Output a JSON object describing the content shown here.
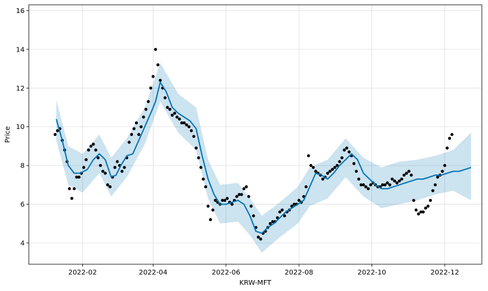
{
  "chart_data": {
    "type": "line",
    "title": "",
    "xlabel": "KRW-MFT",
    "ylabel": "Price",
    "grid": true,
    "x_ticks": [
      "2022-02",
      "2022-04",
      "2022-06",
      "2022-08",
      "2022-10",
      "2022-12"
    ],
    "y_ticks": [
      4,
      6,
      8,
      10,
      12,
      14,
      16
    ],
    "xlim": [
      "2021-12-18",
      "2023-01-01"
    ],
    "ylim": [
      2.9,
      16.3
    ],
    "colors": {
      "observed": "#000000",
      "forecast": "#0072B2",
      "interval": "#0072B2",
      "grid": "#e0e0e0"
    },
    "series": [
      {
        "role": "forecast",
        "x": [
          "2022-01-10",
          "2022-01-15",
          "2022-01-20",
          "2022-01-25",
          "2022-01-30",
          "2022-02-05",
          "2022-02-10",
          "2022-02-15",
          "2022-02-20",
          "2022-02-25",
          "2022-03-01",
          "2022-03-05",
          "2022-03-10",
          "2022-03-15",
          "2022-03-20",
          "2022-03-25",
          "2022-03-30",
          "2022-04-03",
          "2022-04-07",
          "2022-04-12",
          "2022-04-17",
          "2022-04-22",
          "2022-04-27",
          "2022-05-02",
          "2022-05-07",
          "2022-05-12",
          "2022-05-17",
          "2022-05-22",
          "2022-05-27",
          "2022-06-01",
          "2022-06-06",
          "2022-06-11",
          "2022-06-16",
          "2022-06-21",
          "2022-06-26",
          "2022-07-01",
          "2022-07-06",
          "2022-07-11",
          "2022-07-16",
          "2022-07-21",
          "2022-07-26",
          "2022-07-31",
          "2022-08-05",
          "2022-08-10",
          "2022-08-15",
          "2022-08-20",
          "2022-08-25",
          "2022-08-30",
          "2022-09-04",
          "2022-09-09",
          "2022-09-14",
          "2022-09-19",
          "2022-09-24",
          "2022-09-29",
          "2022-10-04",
          "2022-10-09",
          "2022-10-14",
          "2022-10-19",
          "2022-10-24",
          "2022-10-29",
          "2022-11-03",
          "2022-11-08",
          "2022-11-13",
          "2022-11-18",
          "2022-11-23",
          "2022-11-28",
          "2022-12-03",
          "2022-12-08",
          "2022-12-13",
          "2022-12-18",
          "2022-12-23"
        ],
        "y": [
          10.4,
          9.3,
          8.0,
          7.6,
          7.6,
          7.8,
          8.3,
          8.6,
          8.3,
          7.4,
          7.5,
          8.0,
          8.5,
          8.6,
          9.3,
          10.0,
          10.7,
          11.3,
          12.3,
          11.8,
          11.0,
          10.7,
          10.5,
          10.3,
          9.9,
          8.5,
          7.3,
          6.5,
          6.0,
          6.0,
          6.1,
          6.2,
          6.0,
          5.4,
          4.6,
          4.5,
          4.8,
          5.0,
          5.3,
          5.6,
          5.8,
          6.0,
          6.2,
          6.9,
          7.6,
          7.5,
          7.3,
          7.6,
          8.0,
          8.3,
          8.6,
          8.3,
          7.6,
          7.3,
          7.0,
          6.8,
          6.8,
          6.9,
          7.0,
          7.1,
          7.2,
          7.3,
          7.3,
          7.4,
          7.5,
          7.5,
          7.6,
          7.7,
          7.7,
          7.8,
          7.9
        ]
      },
      {
        "role": "interval_upper",
        "x": [
          "2022-01-10",
          "2022-01-20",
          "2022-02-01",
          "2022-02-15",
          "2022-02-25",
          "2022-03-10",
          "2022-03-25",
          "2022-04-07",
          "2022-04-22",
          "2022-05-07",
          "2022-05-17",
          "2022-05-27",
          "2022-06-11",
          "2022-06-21",
          "2022-07-01",
          "2022-07-16",
          "2022-07-31",
          "2022-08-10",
          "2022-08-25",
          "2022-09-09",
          "2022-09-24",
          "2022-10-09",
          "2022-10-24",
          "2022-11-08",
          "2022-11-23",
          "2022-12-08",
          "2022-12-23"
        ],
        "y": [
          11.4,
          9.0,
          8.6,
          9.6,
          8.4,
          9.4,
          11.0,
          13.3,
          11.7,
          11.0,
          8.3,
          7.0,
          7.1,
          6.3,
          5.4,
          6.1,
          6.9,
          7.9,
          8.3,
          9.4,
          8.4,
          7.9,
          8.2,
          8.3,
          8.5,
          8.8,
          9.7
        ]
      },
      {
        "role": "interval_lower",
        "x": [
          "2022-01-10",
          "2022-01-20",
          "2022-02-01",
          "2022-02-15",
          "2022-02-25",
          "2022-03-10",
          "2022-03-25",
          "2022-04-07",
          "2022-04-22",
          "2022-05-07",
          "2022-05-17",
          "2022-05-27",
          "2022-06-11",
          "2022-06-21",
          "2022-07-01",
          "2022-07-16",
          "2022-07-31",
          "2022-08-10",
          "2022-08-25",
          "2022-09-09",
          "2022-09-24",
          "2022-10-09",
          "2022-10-24",
          "2022-11-08",
          "2022-11-23",
          "2022-12-08",
          "2022-12-23"
        ],
        "y": [
          9.3,
          7.0,
          6.6,
          7.6,
          6.4,
          7.4,
          9.1,
          11.3,
          9.7,
          8.8,
          6.3,
          5.0,
          5.1,
          4.4,
          3.5,
          4.3,
          5.0,
          5.9,
          6.3,
          7.4,
          6.4,
          5.8,
          6.0,
          6.2,
          6.5,
          6.7,
          6.2
        ]
      },
      {
        "role": "observed",
        "x": [
          "2022-01-09",
          "2022-01-11",
          "2022-01-13",
          "2022-01-15",
          "2022-01-17",
          "2022-01-19",
          "2022-01-21",
          "2022-01-23",
          "2022-01-25",
          "2022-01-27",
          "2022-01-29",
          "2022-01-31",
          "2022-02-02",
          "2022-02-04",
          "2022-02-06",
          "2022-02-08",
          "2022-02-10",
          "2022-02-12",
          "2022-02-14",
          "2022-02-16",
          "2022-02-18",
          "2022-02-20",
          "2022-02-22",
          "2022-02-24",
          "2022-02-26",
          "2022-02-28",
          "2022-03-02",
          "2022-03-04",
          "2022-03-06",
          "2022-03-08",
          "2022-03-10",
          "2022-03-12",
          "2022-03-14",
          "2022-03-16",
          "2022-03-18",
          "2022-03-20",
          "2022-03-22",
          "2022-03-24",
          "2022-03-26",
          "2022-03-28",
          "2022-03-30",
          "2022-04-01",
          "2022-04-03",
          "2022-04-05",
          "2022-04-07",
          "2022-04-09",
          "2022-04-11",
          "2022-04-13",
          "2022-04-15",
          "2022-04-17",
          "2022-04-19",
          "2022-04-21",
          "2022-04-23",
          "2022-04-25",
          "2022-04-27",
          "2022-04-29",
          "2022-05-01",
          "2022-05-03",
          "2022-05-05",
          "2022-05-07",
          "2022-05-09",
          "2022-05-11",
          "2022-05-13",
          "2022-05-15",
          "2022-05-17",
          "2022-05-19",
          "2022-05-21",
          "2022-05-23",
          "2022-05-25",
          "2022-05-27",
          "2022-05-29",
          "2022-05-31",
          "2022-06-02",
          "2022-06-04",
          "2022-06-06",
          "2022-06-08",
          "2022-06-10",
          "2022-06-12",
          "2022-06-14",
          "2022-06-16",
          "2022-06-18",
          "2022-06-20",
          "2022-06-22",
          "2022-06-24",
          "2022-06-26",
          "2022-06-28",
          "2022-06-30",
          "2022-07-02",
          "2022-07-04",
          "2022-07-06",
          "2022-07-08",
          "2022-07-10",
          "2022-07-12",
          "2022-07-14",
          "2022-07-16",
          "2022-07-18",
          "2022-07-20",
          "2022-07-22",
          "2022-07-24",
          "2022-07-26",
          "2022-07-28",
          "2022-07-30",
          "2022-08-01",
          "2022-08-03",
          "2022-08-05",
          "2022-08-07",
          "2022-08-09",
          "2022-08-11",
          "2022-08-13",
          "2022-08-15",
          "2022-08-17",
          "2022-08-19",
          "2022-08-21",
          "2022-08-23",
          "2022-08-25",
          "2022-08-27",
          "2022-08-29",
          "2022-08-31",
          "2022-09-02",
          "2022-09-04",
          "2022-09-06",
          "2022-09-08",
          "2022-09-10",
          "2022-09-12",
          "2022-09-14",
          "2022-09-16",
          "2022-09-18",
          "2022-09-20",
          "2022-09-22",
          "2022-09-24",
          "2022-09-26",
          "2022-09-28",
          "2022-09-30",
          "2022-10-02",
          "2022-10-04",
          "2022-10-06",
          "2022-10-08",
          "2022-10-10",
          "2022-10-12",
          "2022-10-14",
          "2022-10-16",
          "2022-10-18",
          "2022-10-20",
          "2022-10-22",
          "2022-10-24",
          "2022-10-26",
          "2022-10-28",
          "2022-10-30",
          "2022-11-01",
          "2022-11-03",
          "2022-11-05",
          "2022-11-07",
          "2022-11-09",
          "2022-11-11",
          "2022-11-13",
          "2022-11-15",
          "2022-11-17",
          "2022-11-19",
          "2022-11-21",
          "2022-11-23",
          "2022-11-25",
          "2022-11-27",
          "2022-11-29",
          "2022-12-01",
          "2022-12-03",
          "2022-12-05",
          "2022-12-07"
        ],
        "y": [
          9.6,
          9.8,
          9.9,
          9.3,
          8.8,
          8.2,
          6.8,
          6.3,
          6.8,
          7.4,
          7.4,
          7.6,
          7.9,
          8.3,
          8.8,
          9.0,
          9.1,
          8.8,
          8.4,
          8.0,
          7.7,
          7.6,
          7.0,
          6.9,
          7.4,
          7.9,
          8.2,
          8.0,
          7.7,
          7.9,
          8.4,
          9.2,
          9.6,
          9.9,
          10.2,
          9.6,
          10.0,
          10.5,
          10.9,
          11.3,
          12.0,
          12.6,
          14.0,
          13.2,
          12.4,
          12.0,
          11.5,
          11.0,
          10.9,
          10.6,
          10.7,
          10.5,
          10.4,
          10.2,
          10.2,
          10.1,
          10.0,
          9.8,
          9.5,
          8.9,
          8.4,
          7.9,
          7.3,
          6.9,
          5.9,
          5.2,
          5.7,
          6.2,
          6.1,
          6.0,
          6.2,
          6.2,
          6.3,
          6.1,
          6.0,
          6.2,
          6.4,
          6.5,
          6.5,
          6.8,
          6.9,
          6.4,
          5.9,
          5.4,
          4.8,
          4.3,
          4.2,
          4.5,
          4.6,
          4.8,
          5.0,
          5.1,
          5.1,
          5.3,
          5.6,
          5.7,
          5.4,
          5.6,
          5.7,
          5.9,
          6.0,
          6.0,
          6.2,
          6.1,
          6.4,
          6.9,
          8.5,
          8.0,
          7.9,
          7.7,
          7.6,
          7.5,
          7.3,
          7.4,
          7.6,
          7.7,
          7.8,
          7.9,
          8.0,
          8.2,
          8.4,
          8.8,
          8.9,
          8.7,
          8.5,
          8.1,
          7.7,
          7.3,
          7.0,
          7.0,
          6.9,
          6.8,
          7.0,
          7.1,
          7.0,
          6.9,
          6.9,
          7.0,
          7.0,
          7.1,
          7.0,
          7.3,
          7.2,
          7.1,
          7.2,
          7.3,
          7.5,
          7.6,
          7.7,
          7.5,
          6.2,
          5.7,
          5.5,
          5.6,
          5.6,
          5.8,
          5.9,
          6.2,
          6.7,
          7.0,
          7.4,
          7.5,
          7.7,
          8.0,
          8.9,
          9.4,
          9.6
        ]
      }
    ]
  }
}
